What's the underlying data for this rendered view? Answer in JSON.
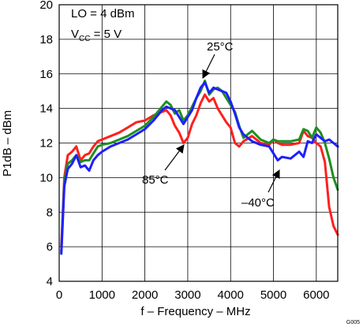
{
  "chart_data": {
    "type": "line",
    "xlabel": "f – Frequency – MHz",
    "ylabel": "P1dB – dBm",
    "xlim": [
      0,
      6500
    ],
    "ylim": [
      4,
      20
    ],
    "xticks": [
      0,
      1000,
      2000,
      3000,
      4000,
      5000,
      6000
    ],
    "yticks": [
      4,
      6,
      8,
      10,
      12,
      14,
      16,
      18,
      20
    ],
    "grid": true,
    "conditions": [
      {
        "main": "LO = 4 dBm",
        "sub": "",
        "tail": ""
      },
      {
        "main": "V",
        "sub": "CC",
        "tail": " = 5 V"
      }
    ],
    "annotations": [
      {
        "text": "25°C",
        "series": "25C"
      },
      {
        "text": "85°C",
        "series": "85C"
      },
      {
        "text": "–40°C",
        "series": "m40C"
      }
    ],
    "figure_id": "G005",
    "series": [
      {
        "key": "85C",
        "color": "#ff1f1f",
        "x": [
          50,
          120,
          200,
          300,
          400,
          500,
          600,
          700,
          800,
          900,
          1000,
          1200,
          1400,
          1600,
          1800,
          2000,
          2200,
          2400,
          2500,
          2600,
          2700,
          2800,
          2900,
          3000,
          3100,
          3200,
          3300,
          3400,
          3500,
          3600,
          3700,
          3800,
          3900,
          4000,
          4100,
          4200,
          4300,
          4500,
          4700,
          4900,
          5000,
          5100,
          5200,
          5400,
          5600,
          5700,
          5800,
          5900,
          6000,
          6100,
          6200,
          6300,
          6400,
          6500
        ],
        "y": [
          6.0,
          10.0,
          11.3,
          11.5,
          11.8,
          11.0,
          11.3,
          11.4,
          11.8,
          12.1,
          12.2,
          12.4,
          12.6,
          12.9,
          13.2,
          13.3,
          13.6,
          13.8,
          13.9,
          13.6,
          13.0,
          12.6,
          12.0,
          12.3,
          13.1,
          13.6,
          14.3,
          14.8,
          14.4,
          14.6,
          14.0,
          13.6,
          13.2,
          12.9,
          12.0,
          11.8,
          12.1,
          12.4,
          12.0,
          11.9,
          12.2,
          12.0,
          11.9,
          11.9,
          12.0,
          12.7,
          12.4,
          12.3,
          12.0,
          11.8,
          10.9,
          8.3,
          7.2,
          6.7
        ]
      },
      {
        "key": "25C",
        "color": "#1f8f1f",
        "x": [
          50,
          120,
          200,
          300,
          400,
          500,
          600,
          700,
          800,
          900,
          1000,
          1200,
          1400,
          1600,
          1800,
          2000,
          2200,
          2400,
          2500,
          2600,
          2700,
          2800,
          2900,
          3000,
          3100,
          3200,
          3300,
          3400,
          3500,
          3600,
          3700,
          3800,
          3900,
          4000,
          4100,
          4200,
          4300,
          4500,
          4700,
          4900,
          5000,
          5100,
          5200,
          5400,
          5600,
          5700,
          5800,
          5900,
          6000,
          6100,
          6200,
          6300,
          6400,
          6500
        ],
        "y": [
          5.7,
          9.8,
          10.8,
          11.0,
          11.3,
          10.9,
          11.0,
          11.0,
          11.4,
          11.8,
          11.9,
          12.0,
          12.2,
          12.4,
          12.7,
          13.0,
          13.5,
          14.1,
          14.4,
          14.2,
          13.7,
          13.9,
          13.3,
          13.6,
          14.1,
          14.6,
          15.0,
          15.6,
          14.8,
          15.1,
          15.2,
          15.0,
          14.6,
          14.2,
          13.8,
          13.0,
          12.3,
          12.7,
          12.2,
          12.0,
          12.2,
          12.1,
          12.1,
          12.1,
          12.2,
          12.8,
          12.7,
          12.3,
          12.9,
          12.6,
          12.0,
          11.1,
          10.0,
          9.3
        ]
      },
      {
        "key": "m40C",
        "color": "#1f1fff",
        "x": [
          50,
          120,
          200,
          300,
          400,
          500,
          600,
          700,
          800,
          900,
          1000,
          1200,
          1400,
          1600,
          1800,
          2000,
          2200,
          2400,
          2500,
          2600,
          2700,
          2800,
          2900,
          3000,
          3100,
          3200,
          3300,
          3400,
          3500,
          3600,
          3700,
          3800,
          3900,
          4000,
          4100,
          4200,
          4300,
          4500,
          4700,
          4900,
          5000,
          5100,
          5200,
          5400,
          5600,
          5700,
          5800,
          5900,
          6000,
          6100,
          6200,
          6300,
          6400,
          6500
        ],
        "y": [
          5.6,
          9.5,
          10.5,
          10.8,
          11.3,
          10.6,
          10.7,
          10.4,
          11.0,
          11.3,
          11.5,
          11.8,
          12.0,
          12.2,
          12.5,
          12.8,
          13.3,
          13.9,
          14.1,
          14.0,
          13.9,
          13.5,
          13.1,
          13.5,
          13.9,
          14.6,
          15.2,
          15.5,
          14.9,
          15.2,
          15.1,
          15.0,
          14.9,
          14.4,
          13.7,
          12.9,
          12.5,
          12.1,
          11.9,
          11.8,
          11.4,
          11.0,
          11.2,
          11.1,
          11.5,
          11.2,
          12.1,
          12.0,
          12.5,
          12.3,
          12.1,
          12.2,
          12.0,
          11.8
        ]
      }
    ]
  }
}
